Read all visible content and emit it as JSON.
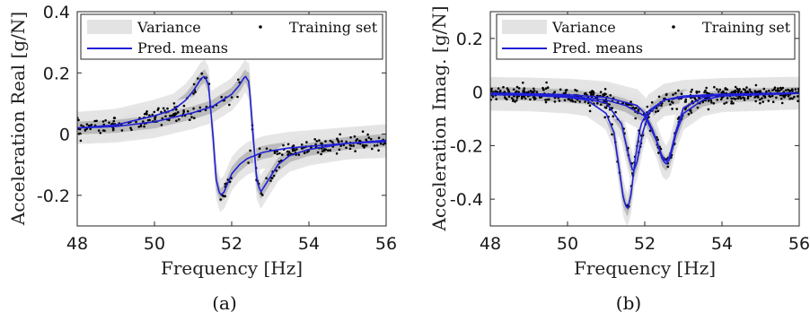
{
  "chart_data": [
    {
      "type": "line",
      "xlabel": "Frequency [Hz]",
      "ylabel": "Acceleration Real [g/N]",
      "caption": "(a)",
      "xlim": [
        48,
        56
      ],
      "ylim": [
        -0.3,
        0.4
      ],
      "xticks": [
        48,
        50,
        52,
        54,
        56
      ],
      "xtick_labels": [
        "48",
        "50",
        "52",
        "54",
        "56"
      ],
      "yticks": [
        -0.2,
        0,
        0.2,
        0.4
      ],
      "ytick_labels": [
        "-0.2",
        "0",
        "0.2",
        "0.4"
      ],
      "legend": {
        "placement": "top",
        "variance_label": "Variance",
        "means_label": "Pred. means",
        "training_label": "Training set"
      },
      "series": [
        {
          "kind": "pred_mean",
          "x": [
            48,
            49,
            50,
            50.5,
            50.8,
            51.0,
            51.2,
            51.3,
            51.4,
            51.5,
            51.6,
            51.7,
            51.8,
            52.0,
            52.2,
            52.4,
            52.6,
            52.8,
            53.0,
            53.5,
            54,
            55,
            56
          ],
          "y": [
            0.02,
            0.03,
            0.06,
            0.08,
            0.11,
            0.14,
            0.18,
            0.19,
            0.16,
            0.02,
            -0.15,
            -0.2,
            -0.19,
            -0.13,
            -0.1,
            -0.08,
            -0.07,
            -0.06,
            -0.055,
            -0.045,
            -0.04,
            -0.03,
            -0.025
          ]
        },
        {
          "kind": "pred_mean",
          "x": [
            48,
            49,
            50,
            51,
            51.5,
            52.0,
            52.2,
            52.35,
            52.45,
            52.55,
            52.65,
            52.75,
            52.9,
            53.2,
            53.5,
            54,
            55,
            56
          ],
          "y": [
            0.02,
            0.025,
            0.04,
            0.07,
            0.09,
            0.13,
            0.16,
            0.19,
            0.17,
            0.0,
            -0.15,
            -0.19,
            -0.16,
            -0.1,
            -0.07,
            -0.05,
            -0.03,
            -0.02
          ]
        }
      ]
    },
    {
      "type": "line",
      "xlabel": "Frequency [Hz]",
      "ylabel": "Acceleration Imag. [g/N]",
      "caption": "(b)",
      "xlim": [
        48,
        56
      ],
      "ylim": [
        -0.5,
        0.3
      ],
      "xticks": [
        48,
        50,
        52,
        54,
        56
      ],
      "xtick_labels": [
        "48",
        "50",
        "52",
        "54",
        "56"
      ],
      "yticks": [
        -0.4,
        -0.2,
        0,
        0.2
      ],
      "ytick_labels": [
        "-0.4",
        "-0.2",
        "0",
        "0.2"
      ],
      "legend": {
        "placement": "top",
        "variance_label": "Variance",
        "means_label": "Pred. means",
        "training_label": "Training set"
      },
      "series": [
        {
          "kind": "pred_mean",
          "x": [
            48,
            49,
            50,
            50.5,
            51.0,
            51.2,
            51.35,
            51.45,
            51.55,
            51.65,
            51.75,
            51.9,
            52.1,
            52.5,
            53,
            54,
            56
          ],
          "y": [
            -0.01,
            -0.012,
            -0.02,
            -0.03,
            -0.08,
            -0.15,
            -0.3,
            -0.4,
            -0.44,
            -0.38,
            -0.25,
            -0.12,
            -0.07,
            -0.03,
            -0.02,
            -0.01,
            -0.005
          ]
        },
        {
          "kind": "pred_mean",
          "x": [
            48,
            49,
            50,
            51,
            51.4,
            51.6,
            51.7,
            51.8,
            51.95,
            52.1,
            52.5,
            53,
            54,
            56
          ],
          "y": [
            -0.005,
            -0.008,
            -0.015,
            -0.04,
            -0.12,
            -0.25,
            -0.3,
            -0.26,
            -0.15,
            -0.08,
            -0.03,
            -0.015,
            -0.008,
            -0.003
          ]
        },
        {
          "kind": "pred_mean",
          "x": [
            48,
            49,
            50,
            51,
            51.8,
            52.0,
            52.2,
            52.35,
            52.45,
            52.55,
            52.65,
            52.8,
            53.0,
            53.5,
            54,
            56
          ],
          "y": [
            -0.004,
            -0.006,
            -0.01,
            -0.02,
            -0.05,
            -0.08,
            -0.14,
            -0.2,
            -0.24,
            -0.26,
            -0.24,
            -0.15,
            -0.06,
            -0.02,
            -0.01,
            -0.004
          ]
        },
        {
          "kind": "pred_mean",
          "x": [
            48,
            49,
            50,
            51,
            51.5,
            52.0,
            52.3,
            52.45,
            52.55,
            52.65,
            52.8,
            53.0,
            53.5,
            54,
            56
          ],
          "y": [
            -0.005,
            -0.008,
            -0.015,
            -0.03,
            -0.05,
            -0.09,
            -0.18,
            -0.25,
            -0.27,
            -0.25,
            -0.16,
            -0.08,
            -0.03,
            -0.015,
            -0.005
          ]
        }
      ]
    }
  ],
  "colors": {
    "mean_line": "#1f1fd6",
    "training_point": "#000000",
    "variance_light": "#e3e3e3",
    "variance_dark": "#8a8a8a"
  }
}
